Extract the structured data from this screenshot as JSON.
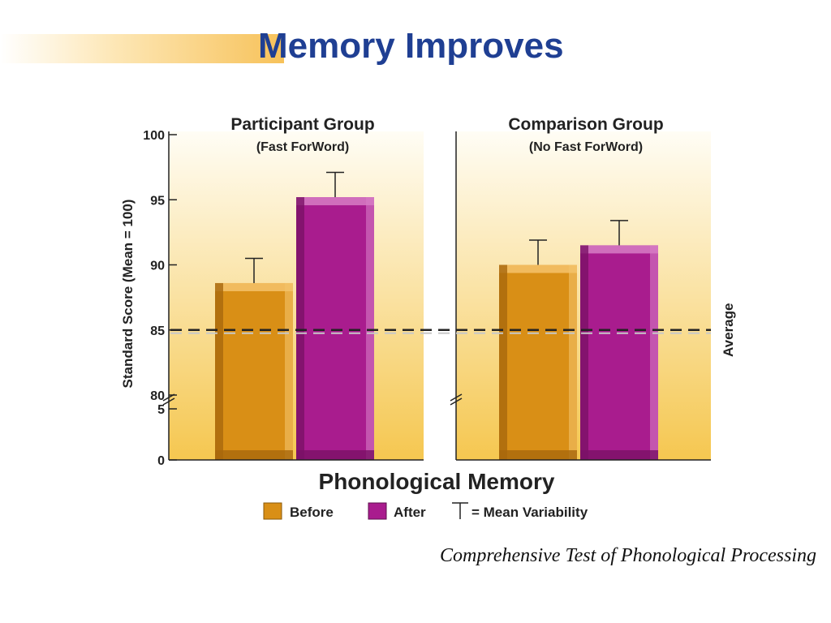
{
  "slide": {
    "title": "Memory Improves",
    "source": "Comprehensive Test of Phonological Processing"
  },
  "chart_data": {
    "type": "bar",
    "title": "Phonological Memory",
    "ylabel": "Standard Score (Mean = 100)",
    "y_ticks": [
      "100",
      "95",
      "90",
      "85",
      "80",
      "5",
      "0"
    ],
    "ylim_upper": [
      80,
      100
    ],
    "axis_break": true,
    "reference_line": {
      "value": 85,
      "label": "Average"
    },
    "groups": [
      {
        "name": "Participant Group",
        "subtitle": "(Fast ForWord)",
        "bars": [
          {
            "series": "Before",
            "value": 88.6,
            "error_top": 90.5
          },
          {
            "series": "After",
            "value": 95.2,
            "error_top": 97.1
          }
        ]
      },
      {
        "name": "Comparison Group",
        "subtitle": "(No Fast ForWord)",
        "bars": [
          {
            "series": "Before",
            "value": 90.0,
            "error_top": 91.9
          },
          {
            "series": "After",
            "value": 91.5,
            "error_top": 93.4
          }
        ]
      }
    ],
    "legend": {
      "items": [
        {
          "label": "Before",
          "color": "#d98f16"
        },
        {
          "label": "After",
          "color": "#a91c8e"
        }
      ],
      "error_label": "= Mean Variability",
      "placement": "bottom"
    },
    "colors": {
      "before": "#d98f16",
      "after": "#a91c8e",
      "panel_top": "#fffdf5",
      "panel_bottom": "#f5c750"
    }
  }
}
